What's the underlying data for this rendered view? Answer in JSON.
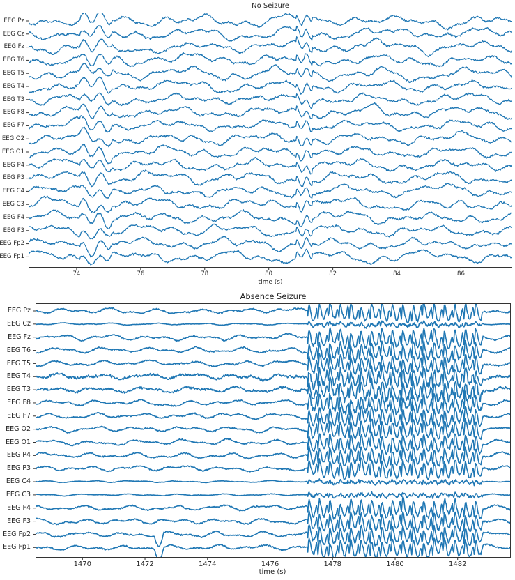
{
  "chart_data": [
    {
      "type": "line",
      "title": "No Seizure",
      "xlabel": "time (s)",
      "ylabel": "",
      "xlim": [
        72.5,
        87.6
      ],
      "xticks": [
        74,
        76,
        78,
        80,
        82,
        84,
        86
      ],
      "xtick_labels": [
        "74",
        "76",
        "78",
        "80",
        "82",
        "84",
        "86"
      ],
      "grid": false,
      "legend": "none",
      "line_color": "#1f77b4",
      "channels": [
        "EEG Pz",
        "EEG Cz",
        "EEG Fz",
        "EEG T6",
        "EEG T5",
        "EEG T4",
        "EEG T3",
        "EEG F8",
        "EEG F7",
        "EEG O2",
        "EEG O1",
        "EEG P4",
        "EEG P3",
        "EEG C4",
        "EEG C3",
        "EEG F4",
        "EEG F3",
        "EEG Fp2",
        "EEG Fp1"
      ],
      "description": "19 vertically offset EEG channels showing irregular background activity with no rhythmic discharge",
      "seizure_interval": null
    },
    {
      "type": "line",
      "title": "Absence Seizure",
      "xlabel": "time (s)",
      "ylabel": "",
      "xlim": [
        1468.5,
        1483.7
      ],
      "xticks": [
        1470,
        1472,
        1474,
        1476,
        1478,
        1480,
        1482
      ],
      "xtick_labels": [
        "1470",
        "1472",
        "1474",
        "1476",
        "1478",
        "1480",
        "1482"
      ],
      "grid": false,
      "legend": "none",
      "line_color": "#1f77b4",
      "channels": [
        "EEG Pz",
        "EEG Cz",
        "EEG Fz",
        "EEG T6",
        "EEG T5",
        "EEG T4",
        "EEG T3",
        "EEG F8",
        "EEG F7",
        "EEG O2",
        "EEG O1",
        "EEG P4",
        "EEG P3",
        "EEG C4",
        "EEG C3",
        "EEG F4",
        "EEG F3",
        "EEG Fp2",
        "EEG Fp1"
      ],
      "description": "19 vertically offset EEG channels; low-amplitude background until ~1477.2 s, then high-amplitude ~3 Hz generalized spike-and-wave discharges until ~1482.8 s, then return to background",
      "seizure_interval": [
        1477.2,
        1482.8
      ]
    }
  ],
  "panels": [
    {
      "title": "No Seizure",
      "xlabel": "time (s)",
      "xticks": [
        "74",
        "76",
        "78",
        "80",
        "82",
        "84",
        "86"
      ],
      "channels": [
        "EEG Pz",
        "EEG Cz",
        "EEG Fz",
        "EEG T6",
        "EEG T5",
        "EEG T4",
        "EEG T3",
        "EEG F8",
        "EEG F7",
        "EEG O2",
        "EEG O1",
        "EEG P4",
        "EEG P3",
        "EEG C4",
        "EEG C3",
        "EEG F4",
        "EEG F3",
        "EEG Fp2",
        "EEG Fp1"
      ]
    },
    {
      "title": "Absence Seizure",
      "xlabel": "time (s)",
      "xticks": [
        "1470",
        "1472",
        "1474",
        "1476",
        "1478",
        "1480",
        "1482"
      ],
      "channels": [
        "EEG Pz",
        "EEG Cz",
        "EEG Fz",
        "EEG T6",
        "EEG T5",
        "EEG T4",
        "EEG T3",
        "EEG F8",
        "EEG F7",
        "EEG O2",
        "EEG O1",
        "EEG P4",
        "EEG P3",
        "EEG C4",
        "EEG C3",
        "EEG F4",
        "EEG F3",
        "EEG Fp2",
        "EEG Fp1"
      ]
    }
  ]
}
